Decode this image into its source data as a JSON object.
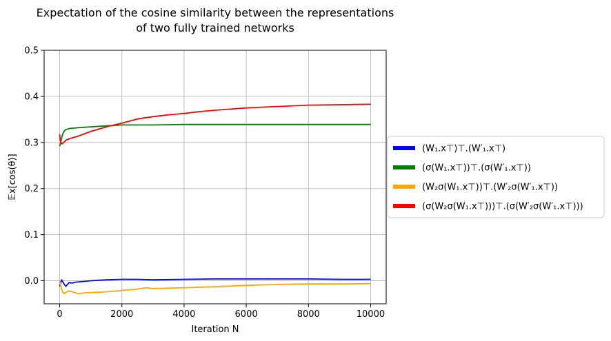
{
  "chart_data": {
    "type": "line",
    "title_lines": [
      "Expectation of the cosine similarity between the representations",
      "of  two fully trained networks"
    ],
    "xlabel": "Iteration N",
    "ylabel": "𝔼x[cos(θ)]",
    "xlim": [
      -500,
      10500
    ],
    "ylim": [
      -0.05,
      0.5
    ],
    "xticks": [
      0,
      2000,
      4000,
      6000,
      8000,
      10000
    ],
    "yticks": [
      0.0,
      0.1,
      0.2,
      0.3,
      0.4,
      0.5
    ],
    "xtick_labels": [
      "0",
      "2000",
      "4000",
      "6000",
      "8000",
      "10000"
    ],
    "ytick_labels": [
      "0.0",
      "0.1",
      "0.2",
      "0.3",
      "0.4",
      "0.5"
    ],
    "grid": true,
    "legend_position": "right-outside",
    "series": [
      {
        "name": "(W₁.x⊤)⊤.(W′₁.x⊤)",
        "color": "#0000ff",
        "x": [
          0,
          30,
          60,
          100,
          150,
          200,
          250,
          300,
          400,
          500,
          700,
          1000,
          1500,
          2000,
          2500,
          3000,
          4000,
          5000,
          6000,
          7000,
          8000,
          9000,
          10000
        ],
        "y": [
          -0.012,
          -0.005,
          0.002,
          -0.002,
          -0.008,
          -0.012,
          -0.008,
          -0.004,
          -0.005,
          -0.003,
          -0.002,
          0.0,
          0.002,
          0.003,
          0.003,
          0.002,
          0.003,
          0.004,
          0.004,
          0.004,
          0.004,
          0.003,
          0.003
        ]
      },
      {
        "name": "(σ(W₁.x⊤))⊤.(σ(W′₁.x⊤))",
        "color": "#008000",
        "x": [
          0,
          20,
          50,
          80,
          120,
          160,
          200,
          300,
          400,
          600,
          800,
          1000,
          1500,
          2000,
          2500,
          3000,
          4000,
          5000,
          6000,
          7000,
          8000,
          9000,
          10000
        ],
        "y": [
          0.292,
          0.296,
          0.305,
          0.315,
          0.322,
          0.326,
          0.328,
          0.33,
          0.331,
          0.332,
          0.333,
          0.334,
          0.336,
          0.338,
          0.338,
          0.338,
          0.339,
          0.339,
          0.339,
          0.339,
          0.339,
          0.339,
          0.339
        ]
      },
      {
        "name": "(W₂σ(W₁.x⊤))⊤.(W′₂σ(W′₁.x⊤))",
        "color": "#ffa500",
        "x": [
          0,
          30,
          60,
          100,
          150,
          200,
          300,
          400,
          500,
          600,
          700,
          900,
          1200,
          1500,
          2000,
          2500,
          2800,
          3000,
          3500,
          4000,
          5000,
          6000,
          7000,
          8000,
          9000,
          10000
        ],
        "y": [
          0.0,
          -0.01,
          -0.018,
          -0.025,
          -0.028,
          -0.025,
          -0.022,
          -0.024,
          -0.026,
          -0.028,
          -0.027,
          -0.026,
          -0.025,
          -0.024,
          -0.021,
          -0.018,
          -0.015,
          -0.017,
          -0.016,
          -0.015,
          -0.013,
          -0.01,
          -0.008,
          -0.007,
          -0.007,
          -0.006
        ]
      },
      {
        "name": "(σ(W₂σ(W₁.x⊤)))⊤.(σ(W′₂σ(W′₁.x⊤)))",
        "color": "#ff0000",
        "x": [
          0,
          20,
          50,
          80,
          120,
          160,
          200,
          300,
          400,
          600,
          800,
          1000,
          1200,
          1500,
          2000,
          2500,
          3000,
          3500,
          4000,
          4500,
          5000,
          6000,
          7000,
          8000,
          9000,
          10000
        ],
        "y": [
          0.318,
          0.305,
          0.298,
          0.297,
          0.3,
          0.302,
          0.305,
          0.308,
          0.31,
          0.314,
          0.319,
          0.324,
          0.328,
          0.334,
          0.342,
          0.351,
          0.356,
          0.36,
          0.363,
          0.367,
          0.37,
          0.375,
          0.378,
          0.381,
          0.382,
          0.383
        ]
      }
    ]
  }
}
